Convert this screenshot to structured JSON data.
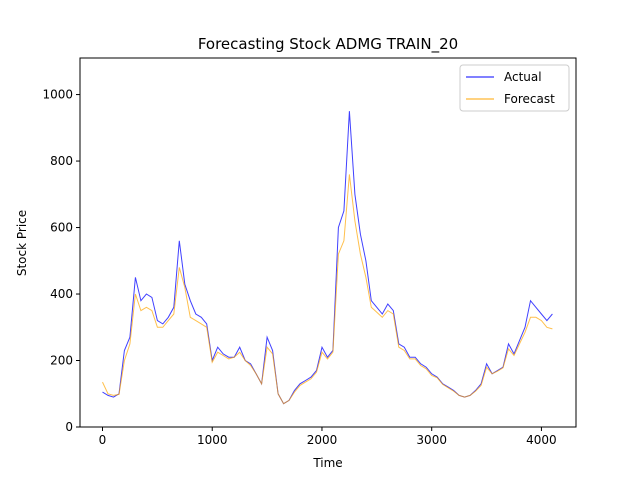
{
  "chart_data": {
    "type": "line",
    "title": "Forecasting Stock ADMG TRAIN_20",
    "x_label": "Time",
    "y_label": "Stock Price",
    "x": [
      0,
      50,
      100,
      150,
      200,
      250,
      300,
      350,
      400,
      450,
      500,
      550,
      600,
      650,
      700,
      750,
      800,
      850,
      900,
      950,
      1000,
      1050,
      1100,
      1150,
      1200,
      1250,
      1300,
      1350,
      1400,
      1450,
      1500,
      1550,
      1600,
      1650,
      1700,
      1750,
      1800,
      1850,
      1900,
      1950,
      2000,
      2050,
      2100,
      2150,
      2200,
      2250,
      2300,
      2350,
      2400,
      2450,
      2500,
      2550,
      2600,
      2650,
      2700,
      2750,
      2800,
      2850,
      2900,
      2950,
      3000,
      3050,
      3100,
      3150,
      3200,
      3250,
      3300,
      3350,
      3400,
      3450,
      3500,
      3550,
      3600,
      3650,
      3700,
      3750,
      3800,
      3850,
      3900,
      3950,
      4000,
      4050,
      4100
    ],
    "series": [
      {
        "name": "Actual",
        "color": "#0000ff",
        "values": [
          105,
          95,
          90,
          100,
          230,
          270,
          450,
          380,
          400,
          390,
          320,
          310,
          330,
          360,
          560,
          430,
          380,
          340,
          330,
          310,
          200,
          240,
          220,
          210,
          210,
          240,
          200,
          190,
          160,
          130,
          270,
          230,
          100,
          70,
          80,
          110,
          130,
          140,
          150,
          170,
          240,
          210,
          230,
          600,
          650,
          950,
          700,
          580,
          500,
          380,
          360,
          340,
          370,
          350,
          250,
          240,
          210,
          210,
          190,
          180,
          160,
          150,
          130,
          120,
          110,
          95,
          90,
          95,
          110,
          130,
          190,
          160,
          170,
          180,
          250,
          220,
          260,
          300,
          380,
          360,
          340,
          320,
          340
        ]
      },
      {
        "name": "Forecast",
        "color": "#ffa500",
        "values": [
          135,
          100,
          95,
          98,
          200,
          250,
          400,
          350,
          360,
          350,
          300,
          300,
          320,
          340,
          480,
          420,
          330,
          320,
          310,
          300,
          195,
          225,
          215,
          205,
          210,
          225,
          200,
          185,
          160,
          130,
          240,
          220,
          100,
          70,
          80,
          105,
          125,
          135,
          145,
          165,
          225,
          205,
          225,
          520,
          560,
          760,
          620,
          520,
          450,
          360,
          345,
          330,
          350,
          340,
          240,
          230,
          205,
          205,
          185,
          175,
          155,
          148,
          128,
          118,
          108,
          95,
          90,
          95,
          108,
          125,
          180,
          160,
          168,
          178,
          235,
          215,
          250,
          285,
          330,
          330,
          320,
          300,
          295
        ]
      }
    ],
    "xlim": [
      -205,
      4315
    ],
    "ylim": [
      0,
      1110
    ],
    "xticks": [
      0,
      1000,
      2000,
      3000,
      4000
    ],
    "yticks": [
      0,
      200,
      400,
      600,
      800,
      1000
    ],
    "legend": "upper right"
  }
}
